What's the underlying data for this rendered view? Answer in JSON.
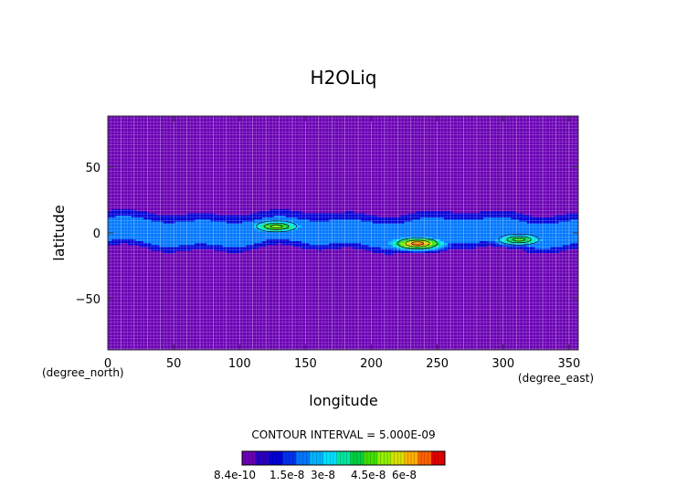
{
  "chart_data": {
    "type": "heatmap",
    "title": "H2OLiq",
    "xlabel": "longitude",
    "ylabel": "latitude",
    "x_units": "(degree_east)",
    "y_units": "(degree_north)",
    "xlim": [
      0,
      357
    ],
    "ylim": [
      -89,
      89
    ],
    "x_ticks": [
      0,
      50,
      100,
      150,
      200,
      250,
      300,
      350
    ],
    "y_ticks": [
      50,
      0,
      -50
    ],
    "grid": true,
    "contour_interval_text": "CONTOUR INTERVAL = 5.000E-09",
    "colorbar": {
      "placement": "bottom",
      "min": 8.4e-10,
      "max": 6.5e-08,
      "tick_labels": [
        "8.4e-10",
        "1.5e-8",
        "3e-8",
        "4.5e-8",
        "6e-8"
      ],
      "levels": [
        8.4e-10,
        5.8e-09,
        1.08e-08,
        1.58e-08,
        2.08e-08,
        2.58e-08,
        3.08e-08,
        3.58e-08,
        4.08e-08,
        4.58e-08,
        5.08e-08,
        5.58e-08,
        6.08e-08
      ],
      "colors": [
        "#6a00b4",
        "#2a00c0",
        "#0000d8",
        "#0030f0",
        "#0078ff",
        "#00b4ff",
        "#00e0ff",
        "#00e8a0",
        "#00d040",
        "#40e000",
        "#90f000",
        "#d8e000",
        "#ffb000",
        "#ff6000",
        "#e00000"
      ]
    },
    "bands": [
      {
        "lat": [
          -20,
          22
        ],
        "value": 5e-09
      },
      {
        "lat": [
          -12,
          15
        ],
        "value": 1e-08
      },
      {
        "lat": [
          -8,
          10
        ],
        "value": 1.6e-08
      }
    ],
    "maxima": [
      {
        "lon": 128,
        "lat": 5,
        "value": 4.6e-08
      },
      {
        "lon": 235,
        "lat": -8,
        "value": 6.4e-08
      },
      {
        "lon": 312,
        "lat": -5,
        "value": 4.2e-08
      }
    ]
  }
}
